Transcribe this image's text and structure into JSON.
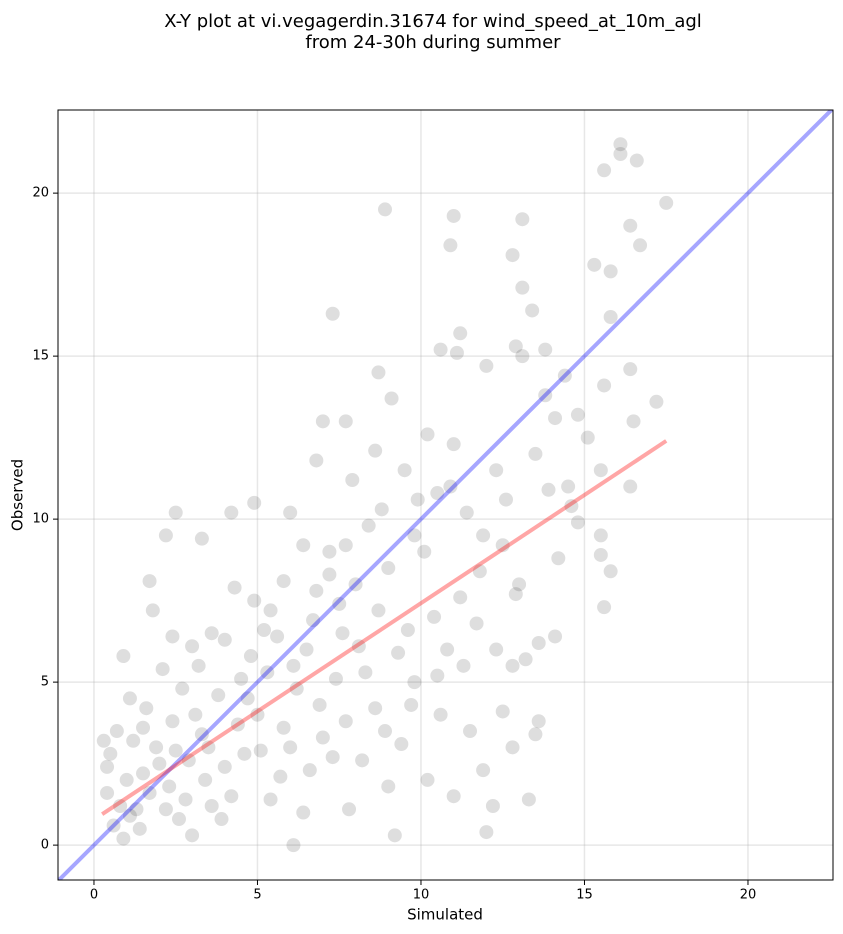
{
  "chart_data": {
    "type": "scatter",
    "title": [
      "X-Y plot at vi.vegagerdin.31674 for wind_speed_at_10m_agl",
      "from 24-30h during summer"
    ],
    "x_label": "Simulated",
    "y_label": "Observed",
    "xlim": [
      -1.1,
      22.6
    ],
    "ylim": [
      -1.07,
      22.55
    ],
    "xticks": [
      0,
      5,
      10,
      15,
      20
    ],
    "yticks": [
      0,
      5,
      10,
      15,
      20
    ],
    "grid": true,
    "points": {
      "color": "#000000",
      "x": [
        16.1,
        16.1,
        16.6,
        15.6,
        17.5,
        8.9,
        11.0,
        13.1,
        16.4,
        10.9,
        16.7,
        12.8,
        15.3,
        15.8,
        13.1,
        7.3,
        13.4,
        15.8,
        11.2,
        12.9,
        13.1,
        13.8,
        10.6,
        11.1,
        16.4,
        14.4,
        15.6,
        8.7,
        12.0,
        17.2,
        9.1,
        14.1,
        14.8,
        16.5,
        7.0,
        7.7,
        13.5,
        15.1,
        15.5,
        16.4,
        15.6,
        15.8,
        15.5,
        15.5,
        14.1,
        13.6,
        13.6,
        13.5,
        13.3,
        12.8,
        12.0,
        12.2,
        9.2,
        6.1,
        1.7,
        1.8,
        2.2,
        2.5,
        0.9,
        4.2,
        4.9,
        3.3,
        8.6,
        9.5,
        10.2,
        11.0,
        12.3,
        12.6,
        13.9,
        14.6,
        10.5,
        11.4,
        9.8,
        8.4,
        7.7,
        7.2,
        6.4,
        6.0,
        5.4,
        6.8,
        8.0,
        9.0,
        10.1,
        11.8,
        12.5,
        13.0,
        14.2,
        11.2,
        10.4,
        9.6,
        8.7,
        7.6,
        6.5,
        5.6,
        4.8,
        4.0,
        3.2,
        2.7,
        2.1,
        1.6,
        1.1,
        0.7,
        0.5,
        0.4,
        0.6,
        0.9,
        1.3,
        1.5,
        1.9,
        2.3,
        2.6,
        2.9,
        3.3,
        3.6,
        4.0,
        4.4,
        4.7,
        5.1,
        5.4,
        5.8,
        6.2,
        6.6,
        7.0,
        7.4,
        7.8,
        8.2,
        8.6,
        9.0,
        9.4,
        9.8,
        10.2,
        10.6,
        11.0,
        11.5,
        11.9,
        12.5,
        11.3,
        10.8,
        9.3,
        8.1,
        1.0,
        1.2,
        1.4,
        1.7,
        2.0,
        2.4,
        2.8,
        3.0,
        3.4,
        3.8,
        4.2,
        4.6,
        5.0,
        5.3,
        5.7,
        6.0,
        6.4,
        6.9,
        7.3,
        7.7,
        0.3,
        0.4,
        0.8,
        1.1,
        1.5,
        2.2,
        2.5,
        3.1,
        3.5,
        3.9,
        4.5,
        5.2,
        6.1,
        6.7,
        7.5,
        8.3,
        8.9,
        9.7,
        10.5,
        11.7,
        12.3,
        12.8,
        13.2,
        12.9,
        11.9,
        10.9,
        9.9,
        8.8,
        7.9,
        6.8,
        7.2,
        5.8,
        4.9,
        4.3,
        3.6,
        3.0,
        2.4,
        14.8,
        14.5,
        13.8
      ],
      "y": [
        21.5,
        21.2,
        21.0,
        20.7,
        19.7,
        19.5,
        19.3,
        19.2,
        19.0,
        18.4,
        18.4,
        18.1,
        17.8,
        17.6,
        17.1,
        16.3,
        16.4,
        16.2,
        15.7,
        15.3,
        15.0,
        15.2,
        15.2,
        15.1,
        14.6,
        14.4,
        14.1,
        14.5,
        14.7,
        13.6,
        13.7,
        13.1,
        13.2,
        13.0,
        13.0,
        13.0,
        12.0,
        12.5,
        11.5,
        11.0,
        7.3,
        8.4,
        8.9,
        9.5,
        6.4,
        6.2,
        3.8,
        3.4,
        1.4,
        3.0,
        0.4,
        1.2,
        0.3,
        0.0,
        8.1,
        7.2,
        9.5,
        10.2,
        5.8,
        10.2,
        10.5,
        9.4,
        12.1,
        11.5,
        12.6,
        12.3,
        11.5,
        10.6,
        10.9,
        10.4,
        10.8,
        10.2,
        9.5,
        9.8,
        9.2,
        8.3,
        9.2,
        10.2,
        7.2,
        7.8,
        8.0,
        8.5,
        9.0,
        8.4,
        9.2,
        8.0,
        8.8,
        7.6,
        7.0,
        6.6,
        7.2,
        6.5,
        6.0,
        6.4,
        5.8,
        6.3,
        5.5,
        4.8,
        5.4,
        4.2,
        4.5,
        3.5,
        2.8,
        1.6,
        0.6,
        0.2,
        1.1,
        2.2,
        3.0,
        1.8,
        0.8,
        2.6,
        3.4,
        1.2,
        2.4,
        3.7,
        4.5,
        2.9,
        1.4,
        3.6,
        4.8,
        2.3,
        3.3,
        5.1,
        1.1,
        2.6,
        4.2,
        1.8,
        3.1,
        5.0,
        2.0,
        4.0,
        1.5,
        3.5,
        2.3,
        4.1,
        5.5,
        6.0,
        5.9,
        6.1,
        2.0,
        3.2,
        0.5,
        1.6,
        2.5,
        3.8,
        1.4,
        0.3,
        2.0,
        4.6,
        1.5,
        2.8,
        4.0,
        5.3,
        2.1,
        3.0,
        1.0,
        4.3,
        2.7,
        3.8,
        3.2,
        2.4,
        1.2,
        0.9,
        3.6,
        1.1,
        2.9,
        4.0,
        3.0,
        0.8,
        5.1,
        6.6,
        5.5,
        6.9,
        7.4,
        5.3,
        3.5,
        4.3,
        5.2,
        6.8,
        6.0,
        5.5,
        5.7,
        7.7,
        9.5,
        11.0,
        10.6,
        10.3,
        11.2,
        11.8,
        9.0,
        8.1,
        7.5,
        7.9,
        6.5,
        6.1,
        6.4,
        9.9,
        11.0,
        13.8
      ]
    },
    "reference_line": {
      "color": "#0000ff",
      "x": [
        -1.1,
        22.6
      ],
      "y": [
        -1.1,
        22.6
      ]
    },
    "fit_line": {
      "color": "#ff0000",
      "x": [
        0.25,
        17.5
      ],
      "y": [
        0.95,
        12.4
      ]
    }
  }
}
